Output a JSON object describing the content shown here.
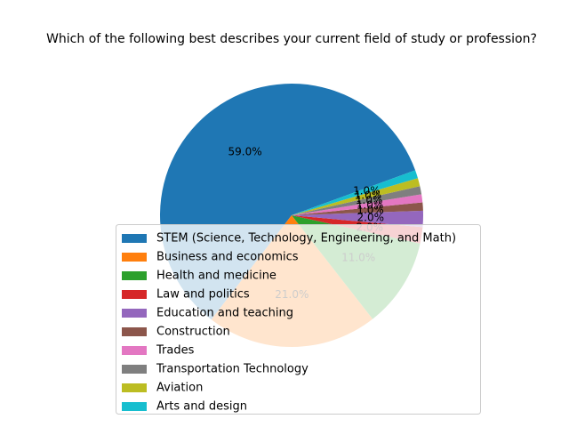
{
  "chart_data": {
    "type": "pie",
    "title": "Which of the following best describes your current field of study or profession?",
    "labels": [
      "STEM (Science, Technology, Engineering, and Math)",
      "Business and economics",
      "Health and medicine",
      "Law and politics",
      "Education and teaching",
      "Construction",
      "Trades",
      "Transportation Technology",
      "Aviation",
      "Arts and design"
    ],
    "values": [
      59.0,
      21.0,
      11.0,
      2.0,
      2.0,
      1.0,
      1.0,
      1.0,
      1.0,
      1.0
    ],
    "value_labels": [
      "59.0%",
      "21.0%",
      "11.0%",
      "2.0%",
      "2.0%",
      "1.0%",
      "1.0%",
      "1.0%",
      "1.0%",
      "1.0%"
    ],
    "colors": [
      "#1f77b4",
      "#ff7f0e",
      "#2ca02c",
      "#d62728",
      "#9467bd",
      "#8c564b",
      "#e377c2",
      "#7f7f7f",
      "#bcbd22",
      "#17becf"
    ],
    "start_angle_deg": 20,
    "direction": "counterclockwise",
    "legend_position": "lower-center, overlapping pie"
  }
}
